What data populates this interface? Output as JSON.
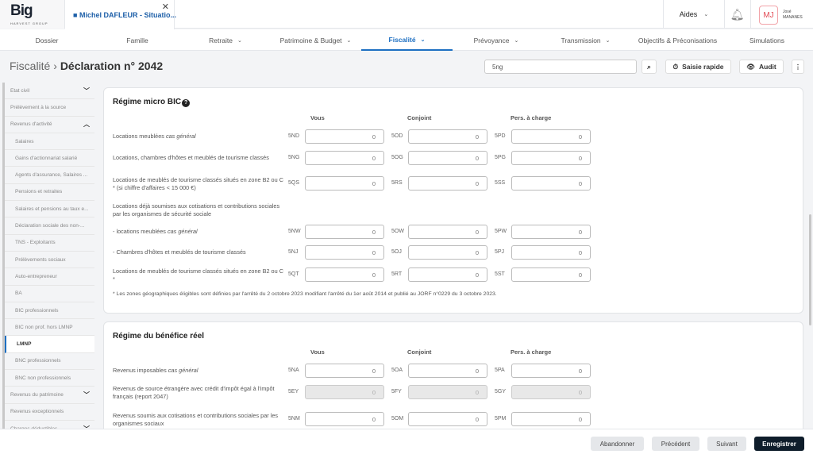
{
  "logo": {
    "text": "Big",
    "sub": "HARVEST GROUP"
  },
  "file_tab": {
    "label": "Michel DAFLEUR - Situatio..."
  },
  "header": {
    "aides": "Aides",
    "user_initials": "MJ",
    "user_first": "José",
    "user_last": "MANANES"
  },
  "nav": [
    {
      "label": "Dossier"
    },
    {
      "label": "Famille"
    },
    {
      "label": "Retraite",
      "chevron": true
    },
    {
      "label": "Patrimoine & Budget",
      "chevron": true
    },
    {
      "label": "Fiscalité",
      "chevron": true,
      "active": true
    },
    {
      "label": "Prévoyance",
      "chevron": true
    },
    {
      "label": "Transmission",
      "chevron": true
    },
    {
      "label": "Objectifs & Préconisations"
    },
    {
      "label": "Simulations"
    }
  ],
  "page": {
    "breadcrumb": "Fiscalité",
    "separator": "›",
    "title": "Déclaration n° 2042",
    "search_value": "5ng",
    "quick_entry": "Saisie rapide",
    "audit": "Audit"
  },
  "sidebar": [
    {
      "label": "Etat civil",
      "chev": "down"
    },
    {
      "label": "Prélèvement à la source"
    },
    {
      "label": "Revenus d'activité",
      "chev": "up"
    },
    {
      "label": "Salaires",
      "sub": true
    },
    {
      "label": "Gains d'actionnariat salarié",
      "sub": true
    },
    {
      "label": "Agents d'assurance, Salaires ...",
      "sub": true
    },
    {
      "label": "Pensions et retraites",
      "sub": true
    },
    {
      "label": "Salaires et pensions au taux e...",
      "sub": true
    },
    {
      "label": "Déclaration sociale des non-...",
      "sub": true
    },
    {
      "label": "TNS - Exploitants",
      "sub": true
    },
    {
      "label": "Prélèvements sociaux",
      "sub": true
    },
    {
      "label": "Auto-entrepreneur",
      "sub": true
    },
    {
      "label": "BA",
      "sub": true
    },
    {
      "label": "BIC professionnels",
      "sub": true
    },
    {
      "label": "BIC non prof. hors LMNP",
      "sub": true
    },
    {
      "label": "LMNP",
      "sub": true,
      "active": true
    },
    {
      "label": "BNC professionnels",
      "sub": true
    },
    {
      "label": "BNC non professionnels",
      "sub": true
    },
    {
      "label": "Revenus du patrimoine",
      "chev": "down"
    },
    {
      "label": "Revenus exceptionnels"
    },
    {
      "label": "Charges déductibles",
      "chev": "down"
    }
  ],
  "columns": {
    "vous": "Vous",
    "conjoint": "Conjoint",
    "pac": "Pers. à charge"
  },
  "micro_bic": {
    "title": "Régime micro BIC",
    "rows": [
      {
        "label": "Locations meublées ",
        "italic": "cas général",
        "fields": [
          {
            "code": "5ND",
            "value": "0"
          },
          {
            "code": "5OD",
            "value": "0"
          },
          {
            "code": "5PD",
            "value": "0"
          }
        ]
      },
      {
        "label": "Locations, chambres d'hôtes et meublés de tourisme classés",
        "fields": [
          {
            "code": "5NG",
            "value": "0"
          },
          {
            "code": "5OG",
            "value": "0"
          },
          {
            "code": "5PG",
            "value": "0"
          }
        ]
      },
      {
        "label": "Locations de meublés de tourisme classés situés en zone B2 ou C * (si chiffre d'affaires < 15 000 €)",
        "fields": [
          {
            "code": "5QS",
            "value": "0"
          },
          {
            "code": "5RS",
            "value": "0"
          },
          {
            "code": "5SS",
            "value": "0"
          }
        ]
      },
      {
        "label": "Locations déjà soumises aux cotisations et contributions sociales par les organismes de sécurité sociale"
      },
      {
        "label": "- locations meublées ",
        "italic": "cas général",
        "fields": [
          {
            "code": "5NW",
            "value": "0"
          },
          {
            "code": "5OW",
            "value": "0"
          },
          {
            "code": "5PW",
            "value": "0"
          }
        ]
      },
      {
        "label": "- Chambres d'hôtes et meublés de tourisme classés",
        "fields": [
          {
            "code": "5NJ",
            "value": "0"
          },
          {
            "code": "5OJ",
            "value": "0"
          },
          {
            "code": "5PJ",
            "value": "0"
          }
        ]
      },
      {
        "label": "Locations de meublés de tourisme classés situés en zone B2 ou C *",
        "fields": [
          {
            "code": "5QT",
            "value": "0"
          },
          {
            "code": "5RT",
            "value": "0"
          },
          {
            "code": "5ST",
            "value": "0"
          }
        ]
      }
    ],
    "note": "* Les zones géographiques éligibles sont définies par l'arrêté du 2 octobre 2023 modifiant l'arrêté du 1er août 2014 et publié au JORF n°0229 du 3 octobre 2023."
  },
  "reel": {
    "title": "Régime du bénéfice réel",
    "rows": [
      {
        "label": "Revenus imposables ",
        "italic": "cas général",
        "fields": [
          {
            "code": "5NA",
            "value": "0"
          },
          {
            "code": "5OA",
            "value": "0"
          },
          {
            "code": "5PA",
            "value": "0"
          }
        ]
      },
      {
        "label": "Revenus de source étrangère avec crédit d'impôt égal à l'impôt français (report 2047)",
        "disabled": true,
        "fields": [
          {
            "code": "5EY",
            "value": "0"
          },
          {
            "code": "5FY",
            "value": "0"
          },
          {
            "code": "5GY",
            "value": "0"
          }
        ]
      },
      {
        "label": "Revenus soumis aux cotisations et contributions sociales par les organismes sociaux",
        "fields": [
          {
            "code": "5NM",
            "value": "0"
          },
          {
            "code": "5OM",
            "value": "0"
          },
          {
            "code": "5PM",
            "value": "0"
          }
        ]
      }
    ]
  },
  "footer": {
    "abandon": "Abandonner",
    "previous": "Précédent",
    "next": "Suivant",
    "save": "Enregistrer"
  }
}
